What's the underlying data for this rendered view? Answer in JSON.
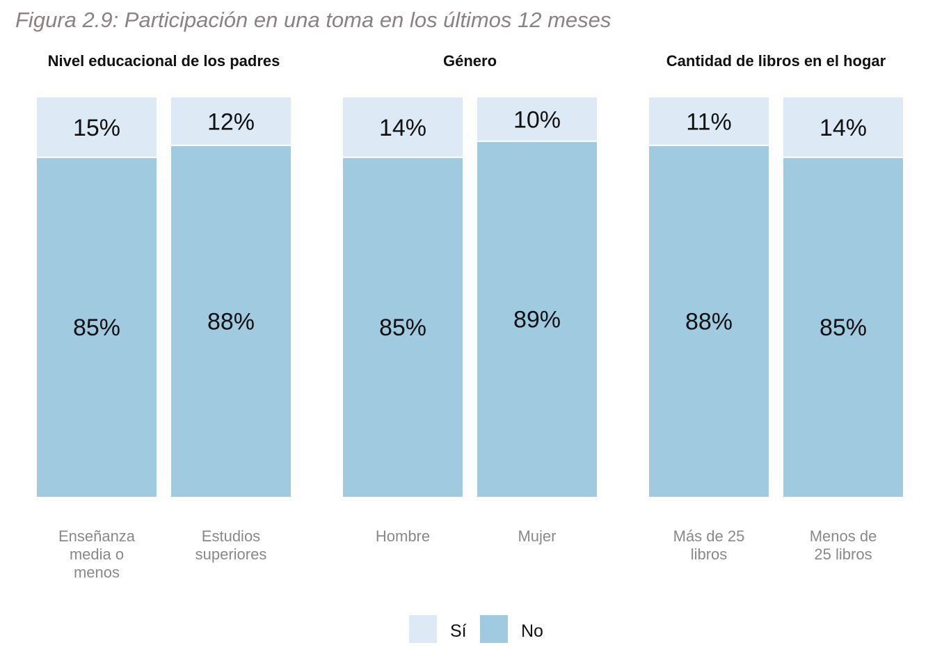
{
  "figure_title": "Figura 2.9: Participación en una toma en los últimos 12 meses",
  "colors": {
    "si": "#dde9f5",
    "no": "#9fcae0"
  },
  "legend": [
    {
      "key": "si",
      "label": "Sí"
    },
    {
      "key": "no",
      "label": "No"
    }
  ],
  "chart_data": {
    "type": "bar",
    "stacked": true,
    "series_order": [
      "No",
      "Sí"
    ],
    "panels": [
      {
        "title": "Nivel educacional de los padres",
        "categories": [
          [
            "Enseñanza",
            "media o",
            "menos"
          ],
          [
            "Estudios",
            "superiores"
          ]
        ],
        "series": [
          {
            "name": "Sí",
            "values": [
              15,
              12
            ],
            "labels": [
              "15%",
              "12%"
            ]
          },
          {
            "name": "No",
            "values": [
              85,
              88
            ],
            "labels": [
              "85%",
              "88%"
            ]
          }
        ]
      },
      {
        "title": "Género",
        "categories": [
          [
            "Hombre"
          ],
          [
            "Mujer"
          ]
        ],
        "series": [
          {
            "name": "Sí",
            "values": [
              14,
              10
            ],
            "labels": [
              "14%",
              "10%"
            ]
          },
          {
            "name": "No",
            "values": [
              85,
              89
            ],
            "labels": [
              "85%",
              "89%"
            ]
          }
        ]
      },
      {
        "title": "Cantidad de libros en el hogar",
        "categories": [
          [
            "Más de 25",
            "libros"
          ],
          [
            "Menos de",
            "25 libros"
          ]
        ],
        "series": [
          {
            "name": "Sí",
            "values": [
              11,
              14
            ],
            "labels": [
              "11%",
              "14%"
            ]
          },
          {
            "name": "No",
            "values": [
              88,
              85
            ],
            "labels": [
              "88%",
              "85%"
            ]
          }
        ]
      }
    ],
    "ylim": [
      0,
      100
    ],
    "grid": false,
    "legend_position": "bottom"
  }
}
